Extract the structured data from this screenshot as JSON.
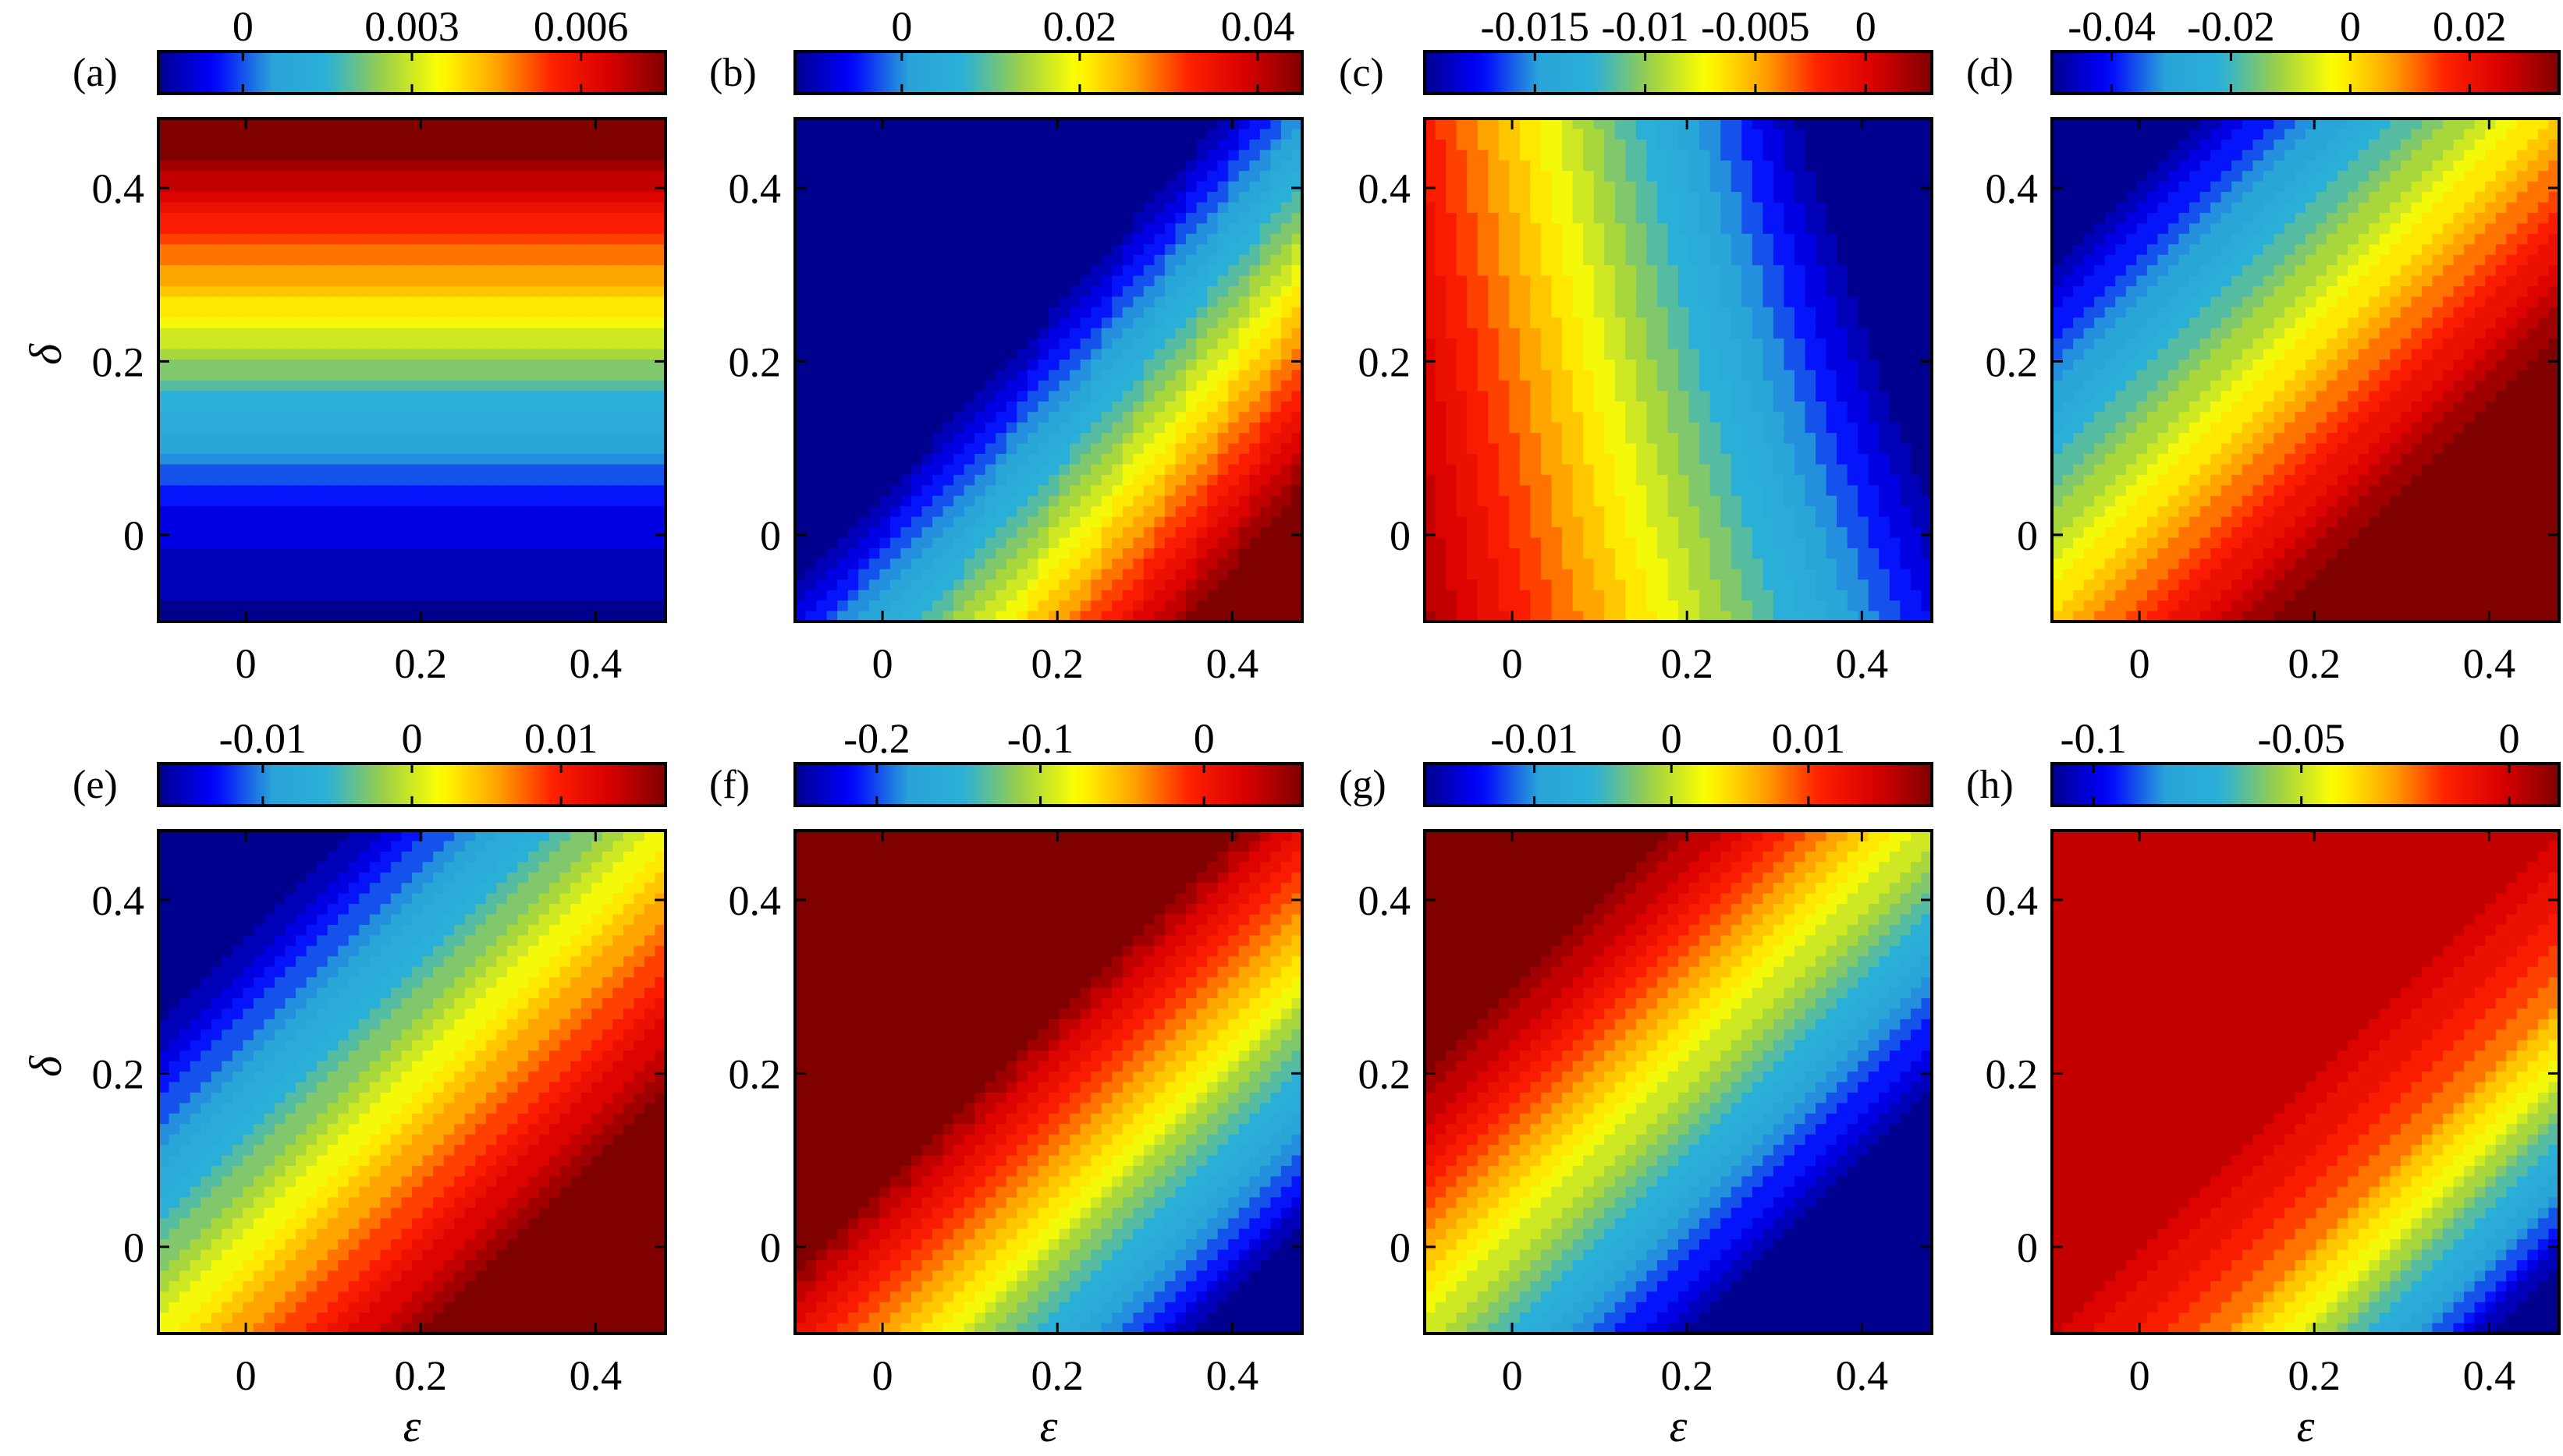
{
  "chart_data": [
    {
      "type": "heatmap",
      "label": "(a)",
      "field": "a",
      "xlim": [
        -0.1,
        0.48
      ],
      "ylim": [
        -0.1,
        0.48
      ],
      "xticks": [
        "0",
        "0.2",
        "0.4"
      ],
      "yticks": [
        "0",
        "0.2",
        "0.4"
      ],
      "xlabel": "",
      "ylabel": "δ",
      "crange": [
        -0.0015,
        0.0075
      ],
      "cticks": [
        {
          "v": 0,
          "label": "0"
        },
        {
          "v": 0.003,
          "label": "0.003"
        },
        {
          "v": 0.006,
          "label": "0.006"
        }
      ]
    },
    {
      "type": "heatmap",
      "label": "(b)",
      "field": "b",
      "xlim": [
        -0.1,
        0.48
      ],
      "ylim": [
        -0.1,
        0.48
      ],
      "xticks": [
        "0",
        "0.2",
        "0.4"
      ],
      "yticks": [
        "0",
        "0.2",
        "0.4"
      ],
      "xlabel": "",
      "ylabel": "",
      "crange": [
        -0.012,
        0.045
      ],
      "cticks": [
        {
          "v": 0,
          "label": "0"
        },
        {
          "v": 0.02,
          "label": "0.02"
        },
        {
          "v": 0.04,
          "label": "0.04"
        }
      ]
    },
    {
      "type": "heatmap",
      "label": "(c)",
      "field": "c",
      "xlim": [
        -0.1,
        0.48
      ],
      "ylim": [
        -0.1,
        0.48
      ],
      "xticks": [
        "0",
        "0.2",
        "0.4"
      ],
      "yticks": [
        "0",
        "0.2",
        "0.4"
      ],
      "xlabel": "",
      "ylabel": "",
      "crange": [
        -0.02,
        0.003
      ],
      "cticks": [
        {
          "v": -0.015,
          "label": "-0.015"
        },
        {
          "v": -0.01,
          "label": "-0.01"
        },
        {
          "v": -0.005,
          "label": "-0.005"
        },
        {
          "v": 0,
          "label": "0"
        }
      ]
    },
    {
      "type": "heatmap",
      "label": "(d)",
      "field": "d",
      "xlim": [
        -0.1,
        0.48
      ],
      "ylim": [
        -0.1,
        0.48
      ],
      "xticks": [
        "0",
        "0.2",
        "0.4"
      ],
      "yticks": [
        "0",
        "0.2",
        "0.4"
      ],
      "xlabel": "",
      "ylabel": "",
      "crange": [
        -0.05,
        0.035
      ],
      "cticks": [
        {
          "v": -0.04,
          "label": "-0.04"
        },
        {
          "v": -0.02,
          "label": "-0.02"
        },
        {
          "v": 0,
          "label": "0"
        },
        {
          "v": 0.02,
          "label": "0.02"
        }
      ]
    },
    {
      "type": "heatmap",
      "label": "(e)",
      "field": "e",
      "xlim": [
        -0.1,
        0.48
      ],
      "ylim": [
        -0.1,
        0.48
      ],
      "xticks": [
        "0",
        "0.2",
        "0.4"
      ],
      "yticks": [
        "0",
        "0.2",
        "0.4"
      ],
      "xlabel": "ε",
      "ylabel": "δ",
      "crange": [
        -0.017,
        0.017
      ],
      "cticks": [
        {
          "v": -0.01,
          "label": "-0.01"
        },
        {
          "v": 0,
          "label": "0"
        },
        {
          "v": 0.01,
          "label": "0.01"
        }
      ]
    },
    {
      "type": "heatmap",
      "label": "(f)",
      "field": "f",
      "xlim": [
        -0.1,
        0.48
      ],
      "ylim": [
        -0.1,
        0.48
      ],
      "xticks": [
        "0",
        "0.2",
        "0.4"
      ],
      "yticks": [
        "0",
        "0.2",
        "0.4"
      ],
      "xlabel": "ε",
      "ylabel": "",
      "crange": [
        -0.25,
        0.06
      ],
      "cticks": [
        {
          "v": -0.2,
          "label": "-0.2"
        },
        {
          "v": -0.1,
          "label": "-0.1"
        },
        {
          "v": 0,
          "label": "0"
        }
      ]
    },
    {
      "type": "heatmap",
      "label": "(g)",
      "field": "g",
      "xlim": [
        -0.1,
        0.48
      ],
      "ylim": [
        -0.1,
        0.48
      ],
      "xticks": [
        "0",
        "0.2",
        "0.4"
      ],
      "yticks": [
        "0",
        "0.2",
        "0.4"
      ],
      "xlabel": "ε",
      "ylabel": "",
      "crange": [
        -0.018,
        0.019
      ],
      "cticks": [
        {
          "v": -0.01,
          "label": "-0.01"
        },
        {
          "v": 0,
          "label": "0"
        },
        {
          "v": 0.01,
          "label": "0.01"
        }
      ]
    },
    {
      "type": "heatmap",
      "label": "(h)",
      "field": "h",
      "xlim": [
        -0.1,
        0.48
      ],
      "ylim": [
        -0.1,
        0.48
      ],
      "xticks": [
        "0",
        "0.2",
        "0.4"
      ],
      "yticks": [
        "0",
        "0.2",
        "0.4"
      ],
      "xlabel": "ε",
      "ylabel": "",
      "crange": [
        -0.11,
        0.012
      ],
      "cticks": [
        {
          "v": -0.1,
          "label": "-0.1"
        },
        {
          "v": -0.05,
          "label": "-0.05"
        },
        {
          "v": 0,
          "label": "0"
        }
      ]
    }
  ],
  "colormap": [
    "#00008f",
    "#0000ff",
    "#29a3d8",
    "#2ab0d8",
    "#9cd046",
    "#ffff00",
    "#ffa500",
    "#ff2000",
    "#d80000",
    "#800000"
  ]
}
